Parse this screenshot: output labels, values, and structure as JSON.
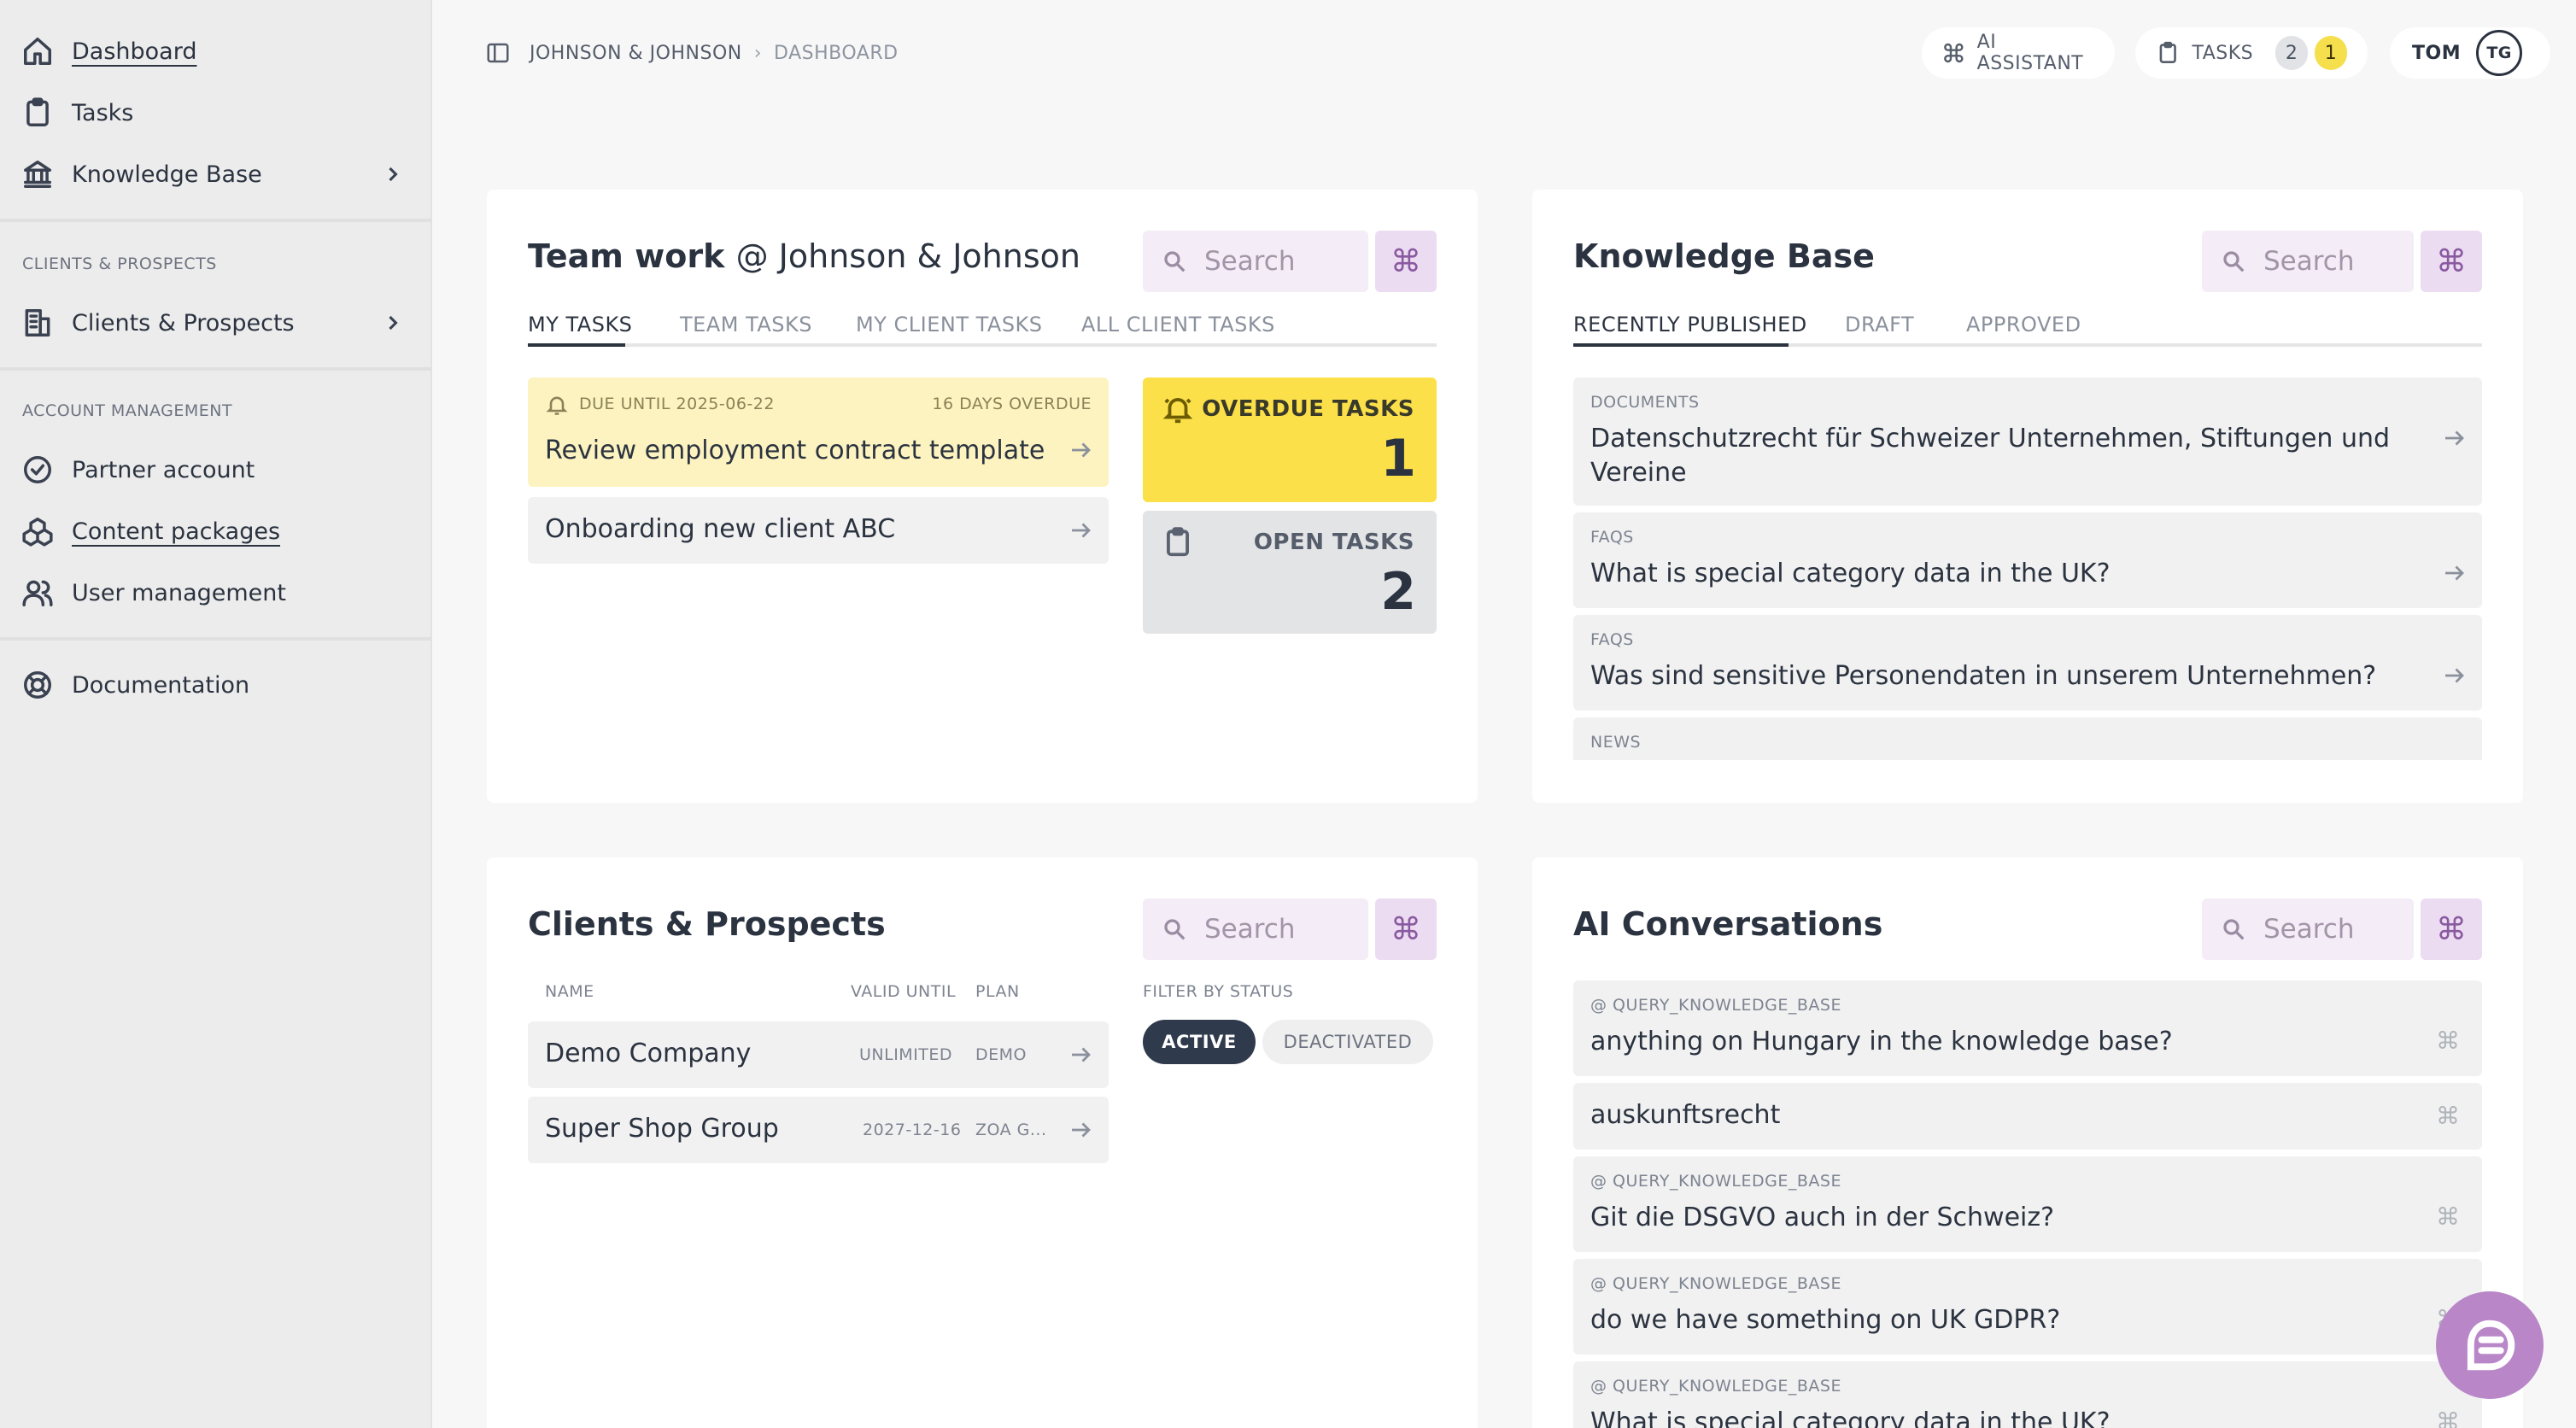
{
  "sidebar": {
    "items": [
      {
        "label": "Dashboard",
        "icon": "home-icon"
      },
      {
        "label": "Tasks",
        "icon": "clipboard-icon"
      },
      {
        "label": "Knowledge Base",
        "icon": "library-icon"
      },
      {
        "label": "Clients & Prospects",
        "icon": "building-icon"
      },
      {
        "label": "Partner account",
        "icon": "check-circle-icon"
      },
      {
        "label": "Content packages",
        "icon": "packages-icon"
      },
      {
        "label": "User management",
        "icon": "users-icon"
      },
      {
        "label": "Documentation",
        "icon": "lifebuoy-icon"
      }
    ],
    "sections": [
      "CLIENTS & PROSPECTS",
      "ACCOUNT MANAGEMENT"
    ]
  },
  "header": {
    "breadcrumb": [
      "JOHNSON & JOHNSON",
      "DASHBOARD"
    ],
    "ai_assistant": "AI ASSISTANT",
    "tasks": "TASKS",
    "tasks_count_open": "2",
    "tasks_count_overdue": "1",
    "user_name": "TOM",
    "user_initials": "TG"
  },
  "teamwork": {
    "title": "Team work",
    "org": "@ Johnson & Johnson",
    "search_placeholder": "Search",
    "tabs": [
      "MY TASKS",
      "TEAM TASKS",
      "MY CLIENT TASKS",
      "ALL CLIENT TASKS"
    ],
    "tasks": [
      {
        "due": "DUE UNTIL 2025-06-22",
        "overdue": "16 DAYS OVERDUE",
        "title": "Review employment contract template"
      },
      {
        "title": "Onboarding new client ABC"
      }
    ],
    "overdue_label": "OVERDUE TASKS",
    "overdue_count": "1",
    "open_label": "OPEN TASKS",
    "open_count": "2"
  },
  "knowledge": {
    "title": "Knowledge Base",
    "search_placeholder": "Search",
    "tabs": [
      "RECENTLY PUBLISHED",
      "DRAFT",
      "APPROVED"
    ],
    "items": [
      {
        "category": "DOCUMENTS",
        "title_line1": "Datenschutzrecht für Schweizer Unternehmen, Stiftungen und",
        "title_line2": "Vereine"
      },
      {
        "category": "FAQS",
        "title": "What is special category data in the UK?"
      },
      {
        "category": "FAQS",
        "title": "Was sind sensitive Personendaten in unserem Unternehmen?"
      },
      {
        "category": "NEWS"
      }
    ]
  },
  "clients": {
    "title": "Clients & Prospects",
    "search_placeholder": "Search",
    "columns": [
      "NAME",
      "VALID UNTIL",
      "PLAN"
    ],
    "rows": [
      {
        "name": "Demo Company",
        "valid": "UNLIMITED",
        "plan": "DEMO"
      },
      {
        "name": "Super Shop Group",
        "valid": "2027-12-16",
        "plan": "ZOA G..."
      }
    ],
    "filter_label": "FILTER BY STATUS",
    "filters": [
      "ACTIVE",
      "DEACTIVATED"
    ]
  },
  "ai": {
    "title": "AI Conversations",
    "search_placeholder": "Search",
    "items": [
      {
        "tool": "@ QUERY_KNOWLEDGE_BASE",
        "title": "anything on Hungary in the knowledge base?"
      },
      {
        "tool": "",
        "title": "auskunftsrecht"
      },
      {
        "tool": "@ QUERY_KNOWLEDGE_BASE",
        "title": "Git die DSGVO auch in der Schweiz?"
      },
      {
        "tool": "@ QUERY_KNOWLEDGE_BASE",
        "title": "do we have something on UK GDPR?"
      },
      {
        "tool": "@ QUERY_KNOWLEDGE_BASE",
        "title": "What is special category data in the UK?"
      }
    ]
  },
  "colors": {
    "sidebar_bg": "#ececec",
    "overdue_yellow": "#fbe04a",
    "accent_purple": "#b986c8",
    "search_bg": "#f4ecf6"
  }
}
